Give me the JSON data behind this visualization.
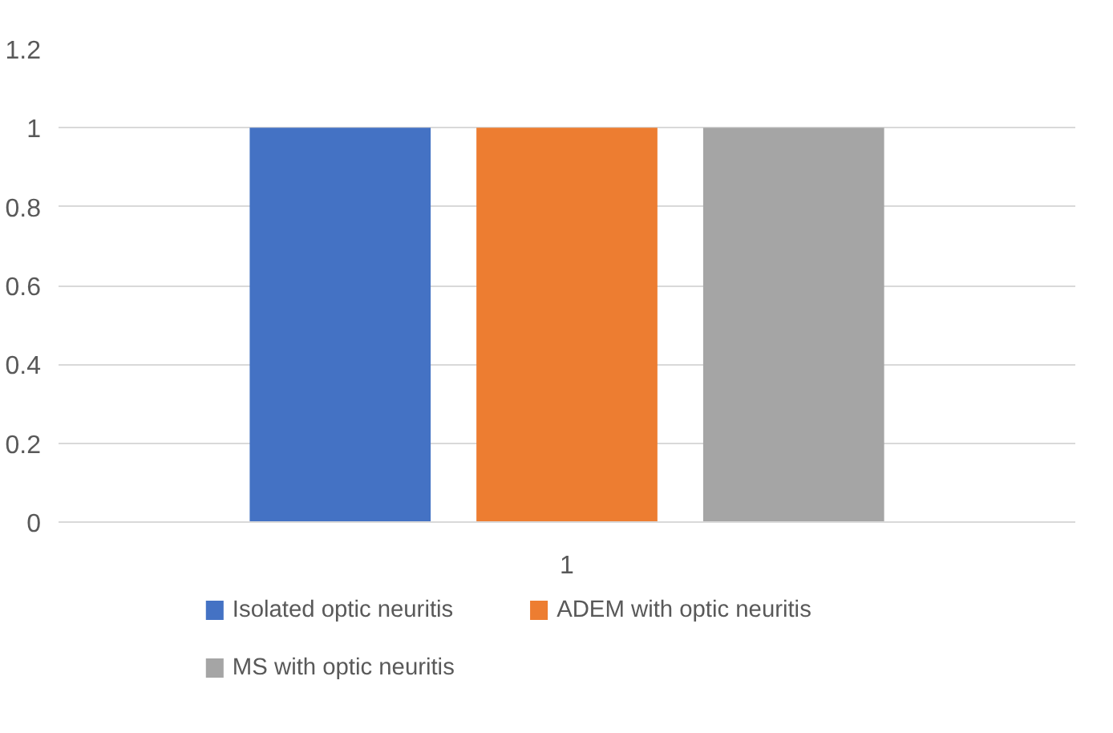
{
  "chart_data": {
    "type": "bar",
    "categories": [
      "1"
    ],
    "series": [
      {
        "name": "Isolated optic neuritis",
        "color": "#4472c4",
        "values": [
          1
        ]
      },
      {
        "name": "ADEM with optic neuritis",
        "color": "#ed7d31",
        "values": [
          1
        ]
      },
      {
        "name": "MS with optic neuritis",
        "color": "#a5a5a5",
        "values": [
          1
        ]
      }
    ],
    "ylim": [
      0,
      1.2
    ],
    "yticks": [
      0,
      0.2,
      0.4,
      0.6,
      0.8,
      1,
      1.2
    ],
    "grid": "y",
    "legend": "bottom"
  }
}
